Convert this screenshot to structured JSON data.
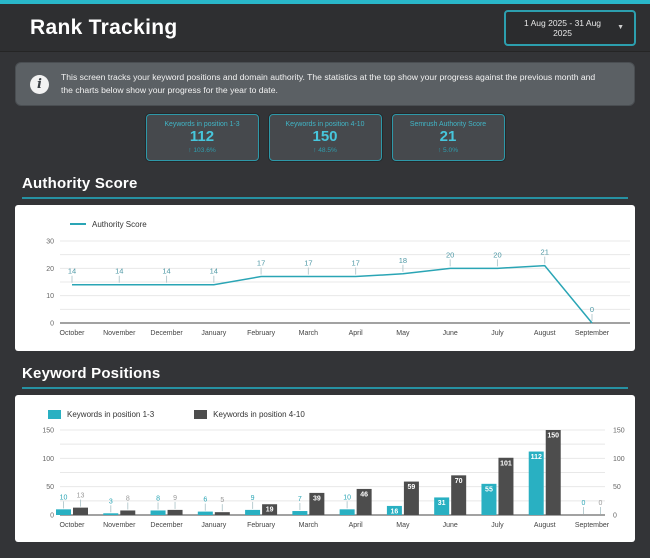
{
  "header": {
    "title": "Rank Tracking",
    "date_range": "1 Aug 2025 - 31 Aug 2025",
    "caret_icon": "▼"
  },
  "info": {
    "icon": "i",
    "text": "This screen tracks your keyword positions and domain authority. The statistics at the top show your progress against the previous month and the charts below show your progress for the year to date."
  },
  "stats": [
    {
      "label": "Keywords in position 1-3",
      "value": "112",
      "change": "↑ 103.6%"
    },
    {
      "label": "Keywords in position 4-10",
      "value": "150",
      "change": "↑ 48.5%"
    },
    {
      "label": "Semrush Authority Score",
      "value": "21",
      "change": "↑ 5.0%"
    }
  ],
  "sections": {
    "authority_title": "Authority Score",
    "keywords_title": "Keyword Positions"
  },
  "colors": {
    "accent": "#29b7c9",
    "line": "#2aa5b5",
    "teal_bar": "#29b0c2",
    "gray_bar": "#4d4d4d",
    "grid": "#e8e8e8",
    "axis_text": "#666666",
    "month_text": "#444444",
    "line_label": "#4e98a5",
    "gray_label": "#999999",
    "leader": "#b9cdd1"
  },
  "chart_data": [
    {
      "type": "line",
      "legend_label": "Authority Score",
      "categories": [
        "October",
        "November",
        "December",
        "January",
        "February",
        "March",
        "April",
        "May",
        "June",
        "July",
        "August",
        "September"
      ],
      "values": [
        14,
        14,
        14,
        14,
        17,
        17,
        17,
        18,
        20,
        20,
        21,
        0
      ],
      "ylim": [
        0,
        30
      ],
      "yticks": [
        0,
        10,
        20,
        30
      ],
      "minor_step": 5,
      "grid": true,
      "legend_position": "top-left"
    },
    {
      "type": "bar",
      "categories": [
        "October",
        "November",
        "December",
        "January",
        "February",
        "March",
        "April",
        "May",
        "June",
        "July",
        "August",
        "September"
      ],
      "series": [
        {
          "name": "Keywords in position 1-3",
          "color": "#29b0c2",
          "values": [
            10,
            3,
            8,
            6,
            9,
            7,
            10,
            16,
            31,
            55,
            112,
            0
          ]
        },
        {
          "name": "Keywords in position 4-10",
          "color": "#4d4d4d",
          "values": [
            13,
            8,
            9,
            5,
            19,
            39,
            46,
            59,
            70,
            101,
            150,
            0
          ]
        }
      ],
      "ylim": [
        0,
        150
      ],
      "yticks": [
        0,
        50,
        100,
        150
      ],
      "minor_step": 25,
      "grid": true,
      "legend_position": "top-left",
      "right_axis": true
    }
  ]
}
